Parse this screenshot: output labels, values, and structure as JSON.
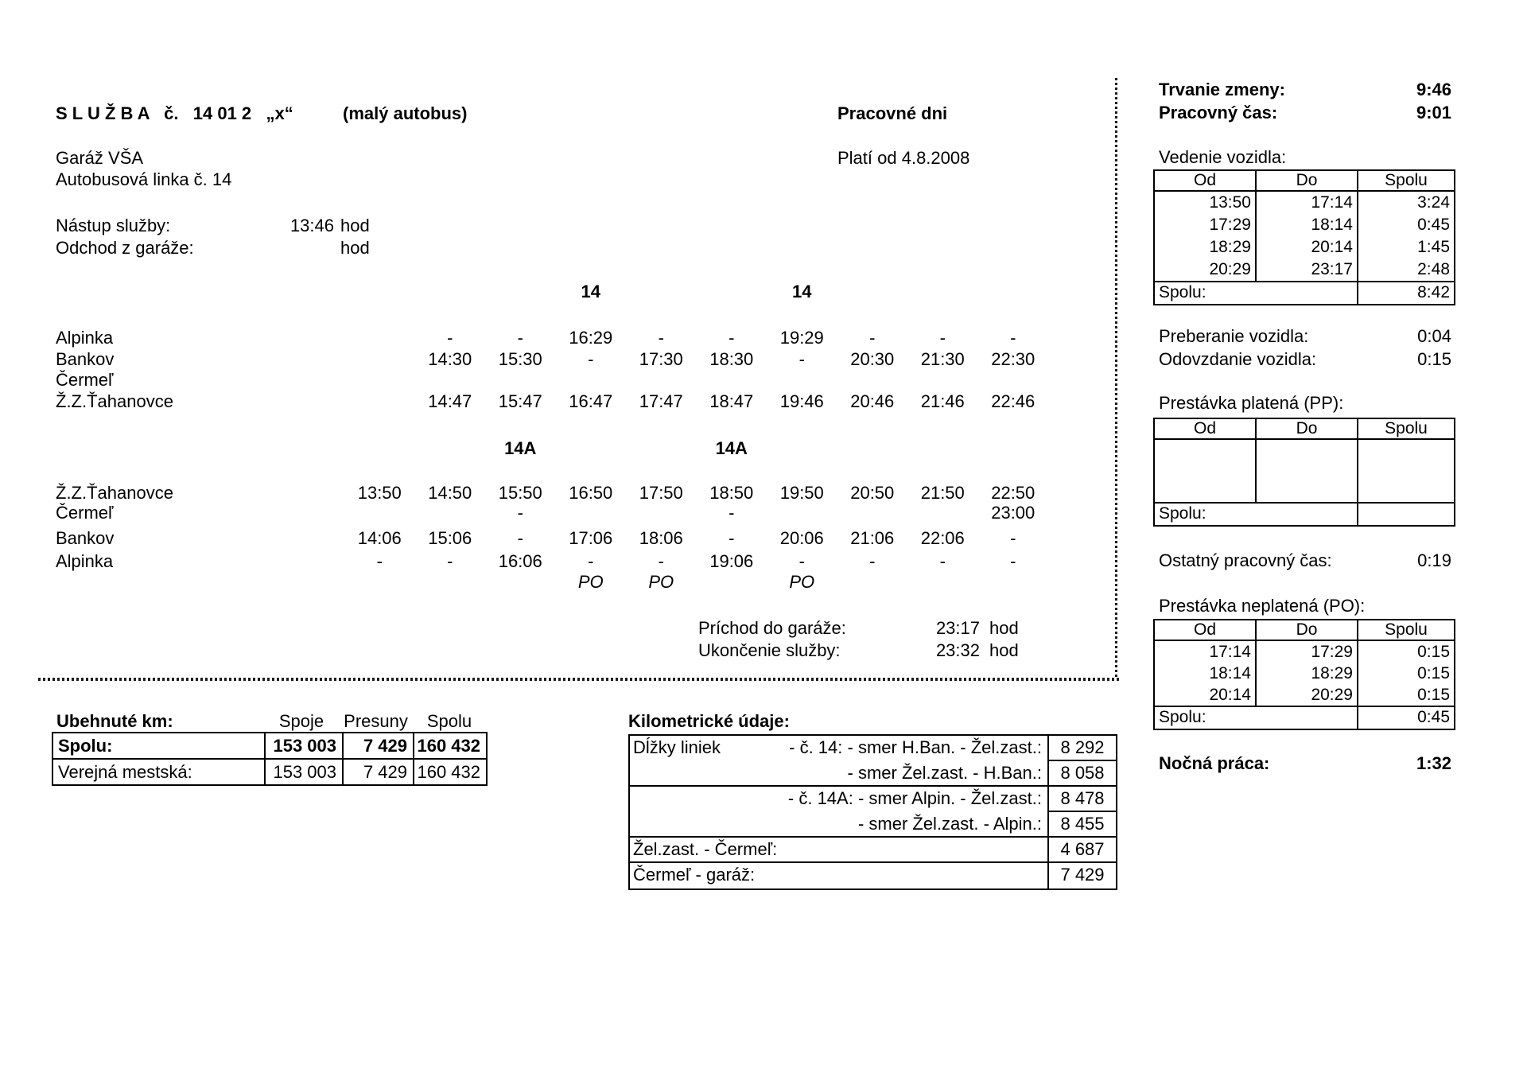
{
  "header": {
    "service_title": "S L U Ž B A   č.   14 01 2   „x“",
    "bus_type": "(malý autobus)",
    "day_type": "Pracovné dni",
    "garage": "Garáž VŠA",
    "valid_from": "Platí od 4.8.2008",
    "line_name": "Autobusová linka č. 14",
    "shift_start_label": "Nástup služby:",
    "shift_start_value": "13:46",
    "shift_start_unit": "hod",
    "garage_departure_label": "Odchod z garáže:",
    "garage_departure_value": "",
    "garage_departure_unit": "hod"
  },
  "timetable": {
    "table1": {
      "line_header": [
        "",
        "",
        "",
        "14",
        "",
        "",
        "14",
        "",
        "",
        ""
      ],
      "rows": [
        {
          "station": "Alpinka",
          "times": [
            "",
            "-",
            "-",
            "16:29",
            "-",
            "-",
            "19:29",
            "-",
            "-",
            "-"
          ]
        },
        {
          "station": "Bankov",
          "times": [
            "",
            "14:30",
            "15:30",
            "-",
            "17:30",
            "18:30",
            "-",
            "20:30",
            "21:30",
            "22:30"
          ]
        },
        {
          "station": "Čermeľ",
          "times": [
            "",
            "",
            "",
            "",
            "",
            "",
            "",
            "",
            "",
            ""
          ]
        },
        {
          "station": "Ž.Z.Ťahanovce",
          "times": [
            "",
            "14:47",
            "15:47",
            "16:47",
            "17:47",
            "18:47",
            "19:46",
            "20:46",
            "21:46",
            "22:46"
          ]
        }
      ]
    },
    "table2": {
      "line_header": [
        "",
        "",
        "14A",
        "",
        "",
        "14A",
        "",
        "",
        "",
        ""
      ],
      "rows": [
        {
          "station": "Ž.Z.Ťahanovce",
          "times": [
            "13:50",
            "14:50",
            "15:50",
            "16:50",
            "17:50",
            "18:50",
            "19:50",
            "20:50",
            "21:50",
            "22:50"
          ]
        },
        {
          "station": "Čermeľ",
          "times": [
            "",
            "",
            "-",
            "",
            "",
            "-",
            "",
            "",
            "",
            "23:00"
          ]
        },
        {
          "station": "Bankov",
          "times": [
            "14:06",
            "15:06",
            "-",
            "17:06",
            "18:06",
            "-",
            "20:06",
            "21:06",
            "22:06",
            "-"
          ]
        },
        {
          "station": "Alpinka",
          "times": [
            "-",
            "-",
            "16:06",
            "-",
            "-",
            "19:06",
            "-",
            "-",
            "-",
            "-"
          ]
        }
      ],
      "break_row": [
        "",
        "",
        "",
        "PO",
        "PO",
        "",
        "PO",
        "",
        "",
        ""
      ]
    },
    "garage_arrival_label": "Príchod do garáže:",
    "garage_arrival_value": "23:17",
    "garage_arrival_unit": "hod",
    "shift_end_label": "Ukončenie služby:",
    "shift_end_value": "23:32",
    "shift_end_unit": "hod"
  },
  "right_panel": {
    "shift_duration_label": "Trvanie zmeny:",
    "shift_duration_value": "9:46",
    "working_time_label": "Pracovný čas:",
    "working_time_value": "9:01",
    "driving_title": "Vedenie vozidla:",
    "col_from": "Od",
    "col_to": "Do",
    "col_total": "Spolu",
    "driving_rows": [
      [
        "13:50",
        "17:14",
        "3:24"
      ],
      [
        "17:29",
        "18:14",
        "0:45"
      ],
      [
        "18:29",
        "20:14",
        "1:45"
      ],
      [
        "20:29",
        "23:17",
        "2:48"
      ]
    ],
    "total_label": "Spolu:",
    "driving_total": "8:42",
    "takeover_label": "Preberanie vozidla:",
    "takeover_value": "0:04",
    "handover_label": "Odovzdanie vozidla:",
    "handover_value": "0:15",
    "paid_break_title": "Prestávka platená (PP):",
    "paid_break_total": "",
    "other_work_label": "Ostatný pracovný čas:",
    "other_work_value": "0:19",
    "unpaid_break_title": "Prestávka neplatená (PO):",
    "unpaid_break_rows": [
      [
        "17:14",
        "17:29",
        "0:15"
      ],
      [
        "18:14",
        "18:29",
        "0:15"
      ],
      [
        "20:14",
        "20:29",
        "0:15"
      ]
    ],
    "unpaid_break_total": "0:45",
    "night_work_label": "Nočná práca:",
    "night_work_value": "1:32"
  },
  "km_summary": {
    "title": "Ubehnuté km:",
    "col_trips": "Spoje",
    "col_transfers": "Presuny",
    "col_total": "Spolu",
    "rows": [
      {
        "label": "Spolu:",
        "trips": "153 003",
        "transfers": "7 429",
        "total": "160 432"
      },
      {
        "label": "Verejná mestská:",
        "trips": "153 003",
        "transfers": "7 429",
        "total": "160 432"
      }
    ]
  },
  "km_details": {
    "title": "Kilometrické údaje:",
    "rows": [
      {
        "label": "Dĺžky liniek",
        "desc": "- č. 14: - smer H.Ban. - Žel.zast.:",
        "value": "8 292"
      },
      {
        "label": "",
        "desc": "- smer Žel.zast. - H.Ban.:",
        "value": "8 058"
      },
      {
        "label": "",
        "desc": "- č. 14A: - smer Alpin. - Žel.zast.:",
        "value": "8 478"
      },
      {
        "label": "",
        "desc": "- smer Žel.zast. - Alpin.:",
        "value": "8 455"
      },
      {
        "label": "Žel.zast. - Čermeľ:",
        "desc": "",
        "value": "4 687"
      },
      {
        "label": "Čermeľ - garáž:",
        "desc": "",
        "value": "7 429"
      }
    ]
  }
}
